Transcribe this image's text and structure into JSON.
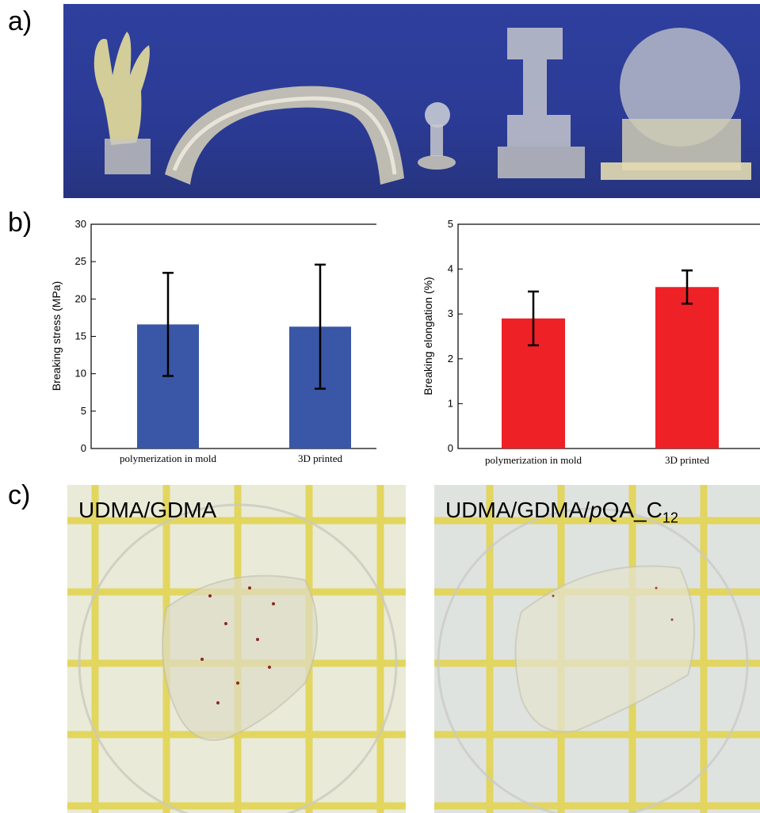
{
  "panel_labels": {
    "a": "a)",
    "b": "b)",
    "c": "c)"
  },
  "photo_c_captions": {
    "left": "UDMA/GDMA",
    "right_prefix": "UDMA/GDMA/",
    "right_italic": "p",
    "right_main": "QA_C",
    "right_sub": "12"
  },
  "colors": {
    "stress_bars": "#3a56a6",
    "elongation_bars": "#ee2127",
    "photo_a_background": "#2e3f9e"
  },
  "chart_data": [
    {
      "type": "bar",
      "categories": [
        "polymerization in mold",
        "3D printed"
      ],
      "values": [
        16.6,
        16.3
      ],
      "error": [
        6.9,
        8.3
      ],
      "ylabel": "Breaking stress (MPa)",
      "ylim": [
        0,
        30
      ],
      "yticks": [
        "0",
        "5",
        "10",
        "15",
        "20",
        "25",
        "30"
      ],
      "color": "#3a56a6",
      "grid": false
    },
    {
      "type": "bar",
      "categories": [
        "polymerization in mold",
        "3D printed"
      ],
      "values": [
        2.9,
        3.6
      ],
      "error": [
        0.6,
        0.37
      ],
      "ylabel": "Breaking elongation (%)",
      "ylim": [
        0,
        5
      ],
      "yticks": [
        "0",
        "1",
        "2",
        "3",
        "4",
        "5"
      ],
      "color": "#ee2127",
      "grid": false
    }
  ]
}
